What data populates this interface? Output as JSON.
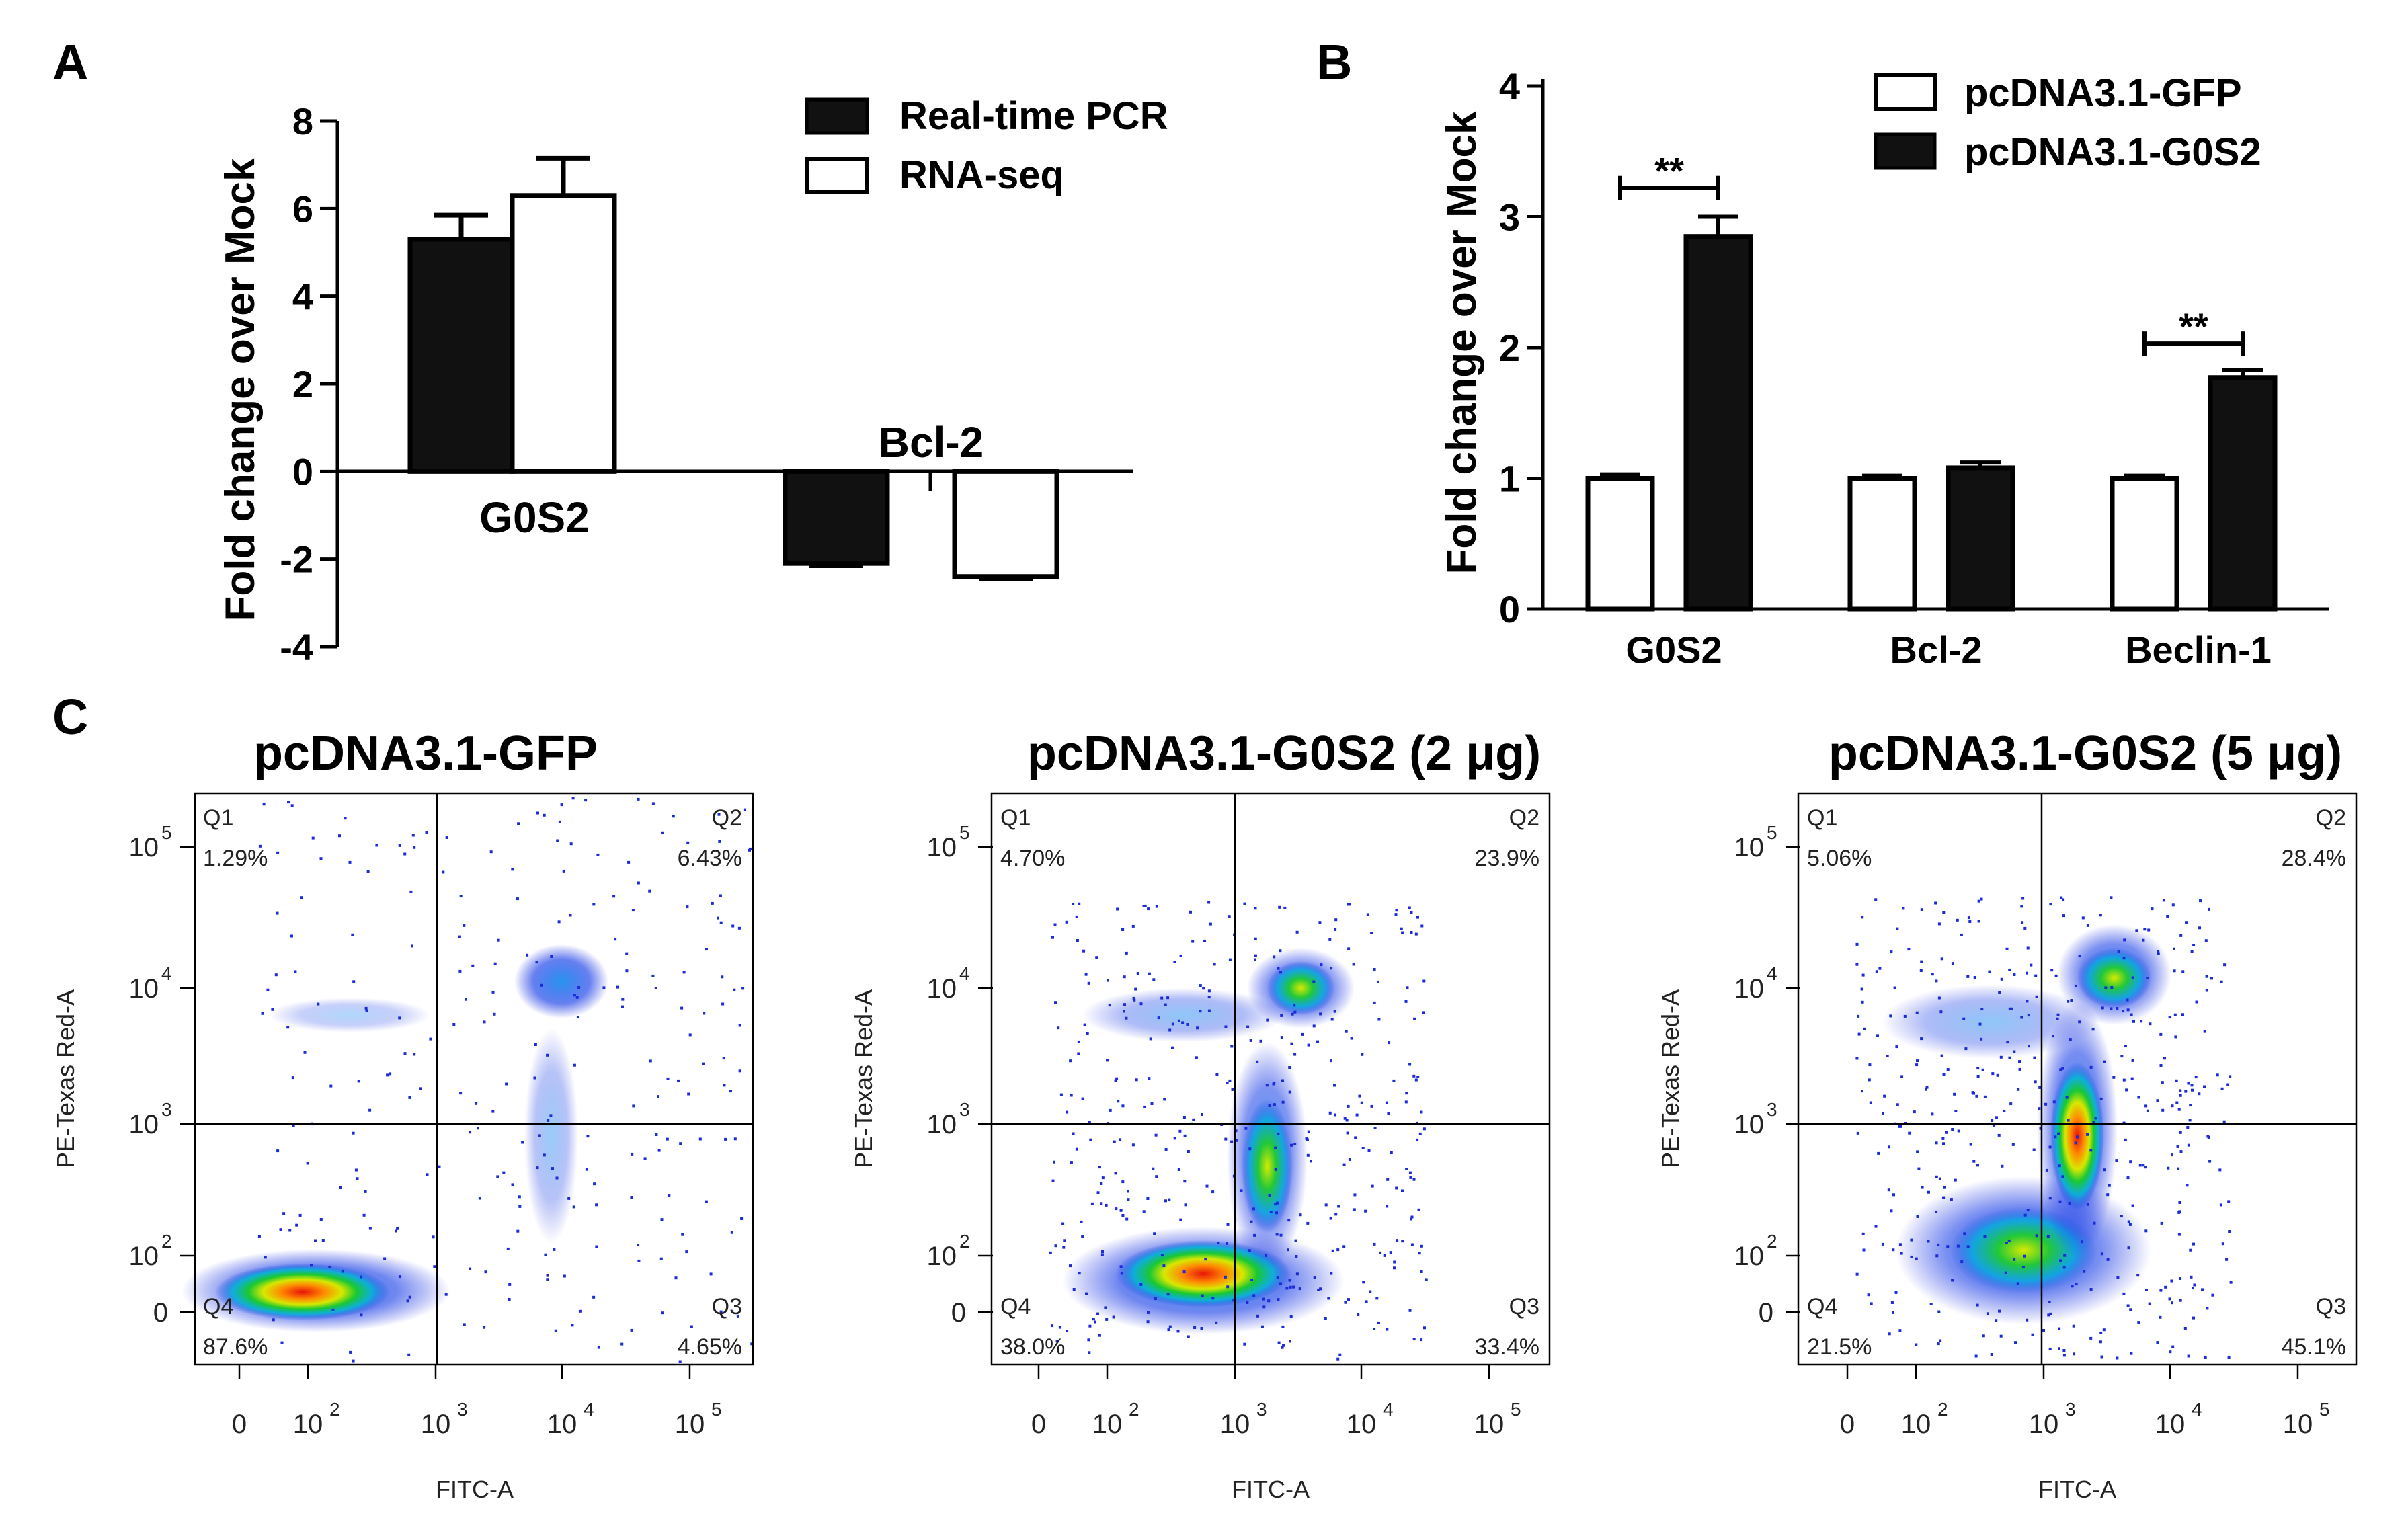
{
  "chart_data": [
    {
      "id": "A",
      "panel_label": "A",
      "type": "bar",
      "ylabel": "Fold change over Mock",
      "ylim": [
        -4,
        8
      ],
      "yticks": [
        "8",
        "6",
        "4",
        "2",
        "0",
        "-2",
        "-4"
      ],
      "categories": [
        "G0S2",
        "Bcl-2"
      ],
      "series": [
        {
          "name": "Real-time PCR",
          "fill": "#111111",
          "values": [
            5.3,
            -2.1
          ],
          "errors": [
            0.55,
            0.05
          ]
        },
        {
          "name": "RNA-seq",
          "fill": "#ffffff",
          "values": [
            6.3,
            -2.4
          ],
          "errors": [
            0.85,
            0.05
          ]
        }
      ]
    },
    {
      "id": "B",
      "panel_label": "B",
      "type": "bar",
      "ylabel": "Fold change over Mock",
      "ylim": [
        0,
        4
      ],
      "yticks": [
        "4",
        "3",
        "2",
        "1",
        "0"
      ],
      "categories": [
        "G0S2",
        "Bcl-2",
        "Beclin-1"
      ],
      "series": [
        {
          "name": "pcDNA3.1-GFP",
          "fill": "#ffffff",
          "values": [
            1.0,
            1.0,
            1.0
          ],
          "errors": [
            0.03,
            0.02,
            0.02
          ]
        },
        {
          "name": "pcDNA3.1-G0S2",
          "fill": "#111111",
          "values": [
            2.85,
            1.08,
            1.77
          ],
          "errors": [
            0.15,
            0.04,
            0.06
          ]
        }
      ],
      "annotations": [
        {
          "text": "**",
          "category": "G0S2",
          "y": 3.22
        },
        {
          "text": "**",
          "category": "Beclin-1",
          "y": 2.03
        }
      ]
    },
    {
      "id": "C",
      "panel_label": "C",
      "type": "scatter",
      "xlabel": "FITC-A",
      "ylabel": "PE-Texas Red-A",
      "x_ticks": [
        "0",
        "10",
        "10",
        "10",
        "10"
      ],
      "x_exps": [
        "",
        "2",
        "3",
        "4",
        "5"
      ],
      "y_ticks": [
        "0",
        "10",
        "10",
        "10",
        "10"
      ],
      "y_exps": [
        "",
        "2",
        "3",
        "4",
        "5"
      ],
      "quadrant_names": [
        "Q1",
        "Q2",
        "Q3",
        "Q4"
      ],
      "plots": [
        {
          "title": "pcDNA3.1-GFP",
          "q1": "1.29%",
          "q2": "6.43%",
          "q3": "4.65%",
          "q4": "87.6%"
        },
        {
          "title": "pcDNA3.1-G0S2 (2 μg)",
          "q1": "4.70%",
          "q2": "23.9%",
          "q3": "33.4%",
          "q4": "38.0%"
        },
        {
          "title": "pcDNA3.1-G0S2 (5 μg)",
          "q1": "5.06%",
          "q2": "28.4%",
          "q3": "45.1%",
          "q4": "21.5%"
        }
      ]
    }
  ]
}
